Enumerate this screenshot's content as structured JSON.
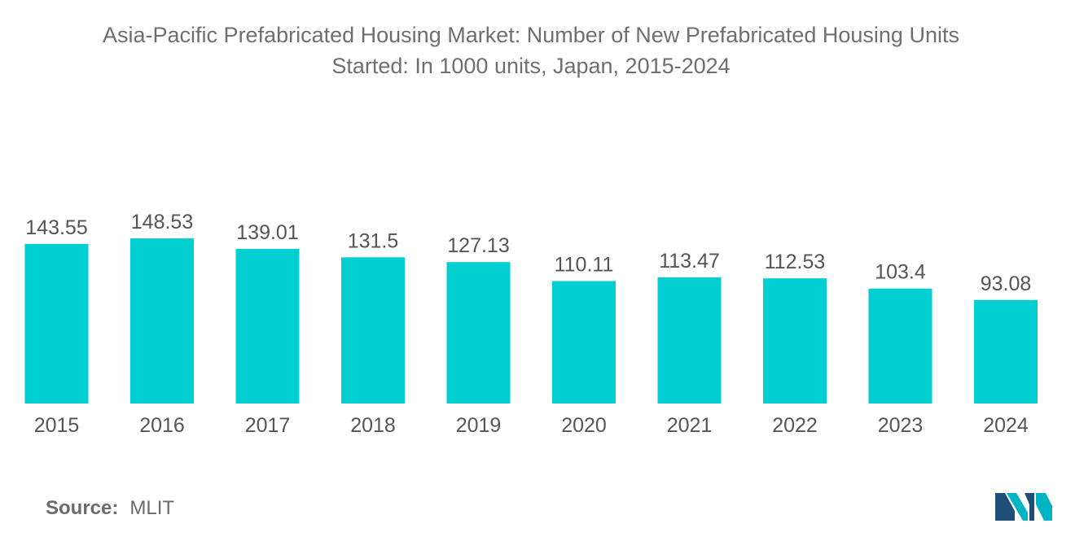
{
  "chart_data": {
    "type": "bar",
    "title_line1": "Asia-Pacific Prefabricated Housing Market: Number of New Prefabricated Housing Units",
    "title_line2": "Started: In 1000 units, Japan, 2015-2024",
    "categories": [
      "2015",
      "2016",
      "2017",
      "2018",
      "2019",
      "2020",
      "2021",
      "2022",
      "2023",
      "2024"
    ],
    "values": [
      143.55,
      148.53,
      139.01,
      131.5,
      127.13,
      110.11,
      113.47,
      112.53,
      103.4,
      93.08
    ],
    "value_labels": [
      "143.55",
      "148.53",
      "139.01",
      "131.5",
      "127.13",
      "110.11",
      "113.47",
      "112.53",
      "103.4",
      "93.08"
    ],
    "xlabel": "",
    "ylabel": "",
    "ylim": [
      0,
      148.53
    ],
    "grid": false,
    "legend": "none",
    "bar_color": "#00CED1"
  },
  "source": {
    "label": "Source:",
    "value": "MLIT"
  },
  "logo": {
    "icon": "mordor-intelligence-logo-icon",
    "colors": [
      "#1f4e79",
      "#00b4c5"
    ]
  }
}
